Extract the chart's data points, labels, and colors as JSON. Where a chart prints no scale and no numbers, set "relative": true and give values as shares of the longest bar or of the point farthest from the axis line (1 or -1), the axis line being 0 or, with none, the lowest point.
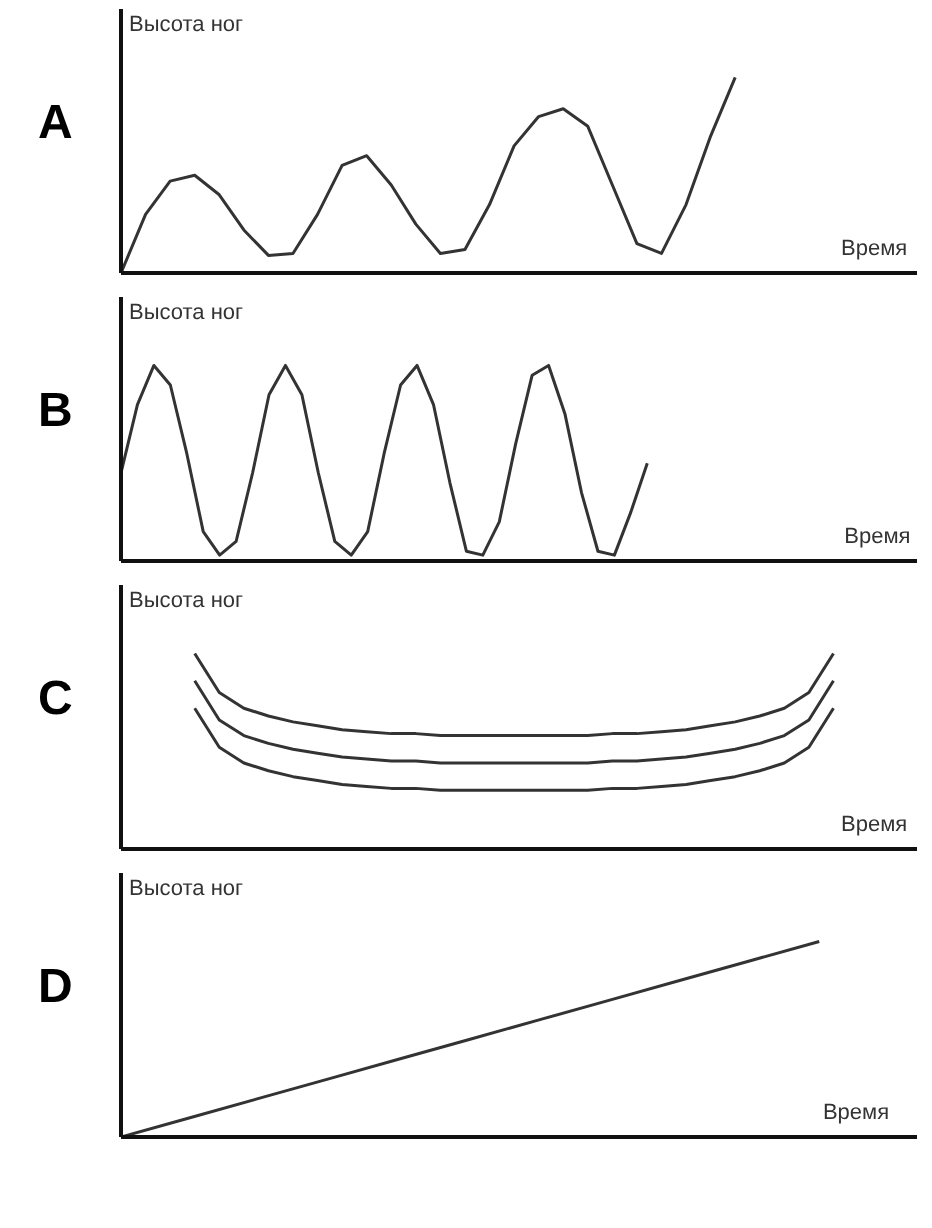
{
  "chart_data": [
    {
      "type": "line",
      "title": "A",
      "ylabel": "Высота ног",
      "xlabel": "Время",
      "relative": true,
      "color": "#333333",
      "categories": [
        null,
        null,
        null,
        null,
        null,
        null,
        null,
        null,
        null,
        null,
        null,
        null,
        null,
        null,
        null,
        null,
        null,
        null,
        null,
        null,
        null,
        null,
        null,
        null,
        null,
        null,
        null,
        null,
        null,
        null,
        null,
        null,
        null
      ],
      "values": [
        0.0,
        0.3,
        0.47,
        0.5,
        0.4,
        0.22,
        0.09,
        0.1,
        0.3,
        0.55,
        0.6,
        0.45,
        0.25,
        0.1,
        0.12,
        0.35,
        0.65,
        0.8,
        0.84,
        0.75,
        0.45,
        0.15,
        0.1,
        0.35,
        0.7,
        1.0,
        null,
        null,
        null,
        null,
        null,
        null,
        null
      ]
    },
    {
      "type": "line",
      "title": "B",
      "ylabel": "Высота ног",
      "xlabel": "Время",
      "relative": true,
      "color": "#333333",
      "categories": [
        null,
        null,
        null,
        null,
        null,
        null,
        null,
        null,
        null,
        null,
        null,
        null,
        null,
        null,
        null,
        null,
        null,
        null,
        null,
        null,
        null,
        null,
        null,
        null,
        null,
        null,
        null,
        null,
        null,
        null,
        null,
        null,
        null,
        null,
        null,
        null,
        null,
        null,
        null,
        null,
        null,
        null,
        null,
        null,
        null,
        null,
        null,
        null,
        null
      ],
      "values": [
        0.45,
        0.8,
        1.0,
        0.9,
        0.55,
        0.15,
        0.03,
        0.1,
        0.45,
        0.85,
        1.0,
        0.85,
        0.45,
        0.1,
        0.03,
        0.15,
        0.55,
        0.9,
        1.0,
        0.8,
        0.4,
        0.05,
        0.03,
        0.2,
        0.6,
        0.95,
        1.0,
        0.75,
        0.35,
        0.05,
        0.03,
        0.25,
        0.5,
        null,
        null,
        null,
        null,
        null,
        null,
        null,
        null,
        null,
        null,
        null,
        null,
        null,
        null,
        null,
        null
      ]
    },
    {
      "type": "line",
      "title": "C",
      "ylabel": "Высота ног",
      "xlabel": "Время",
      "relative": true,
      "categories": [
        null,
        null,
        null,
        null,
        null,
        null,
        null,
        null,
        null,
        null,
        null,
        null,
        null,
        null,
        null,
        null,
        null,
        null,
        null,
        null,
        null,
        null,
        null,
        null,
        null,
        null,
        null,
        null,
        null,
        null,
        null,
        null,
        null
      ],
      "series": [
        {
          "color": "#333333",
          "values": [
            null,
            null,
            null,
            1.0,
            0.8,
            0.72,
            0.68,
            0.65,
            0.63,
            0.61,
            0.6,
            0.59,
            0.59,
            0.58,
            0.58,
            0.58,
            0.58,
            0.58,
            0.58,
            0.58,
            0.59,
            0.59,
            0.6,
            0.61,
            0.63,
            0.65,
            0.68,
            0.72,
            0.8,
            1.0,
            null,
            null,
            null
          ]
        },
        {
          "color": "#333333",
          "values": [
            null,
            null,
            null,
            0.86,
            0.66,
            0.58,
            0.54,
            0.51,
            0.49,
            0.47,
            0.46,
            0.45,
            0.45,
            0.44,
            0.44,
            0.44,
            0.44,
            0.44,
            0.44,
            0.44,
            0.45,
            0.45,
            0.46,
            0.47,
            0.49,
            0.51,
            0.54,
            0.58,
            0.66,
            0.86,
            null,
            null,
            null
          ]
        },
        {
          "color": "#333333",
          "values": [
            null,
            null,
            null,
            0.72,
            0.52,
            0.44,
            0.4,
            0.37,
            0.35,
            0.33,
            0.32,
            0.31,
            0.31,
            0.3,
            0.3,
            0.3,
            0.3,
            0.3,
            0.3,
            0.3,
            0.31,
            0.31,
            0.32,
            0.33,
            0.35,
            0.37,
            0.4,
            0.44,
            0.52,
            0.72,
            null,
            null,
            null
          ]
        }
      ]
    },
    {
      "type": "line",
      "title": "D",
      "ylabel": "Высота ног",
      "xlabel": "Время",
      "relative": true,
      "color": "#333333",
      "categories": [
        null,
        null,
        null,
        null,
        null,
        null,
        null,
        null,
        null,
        null,
        null,
        null
      ],
      "values": [
        0.0,
        0.1,
        0.2,
        0.3,
        0.4,
        0.5,
        0.6,
        0.7,
        0.8,
        0.9,
        1.0,
        null
      ]
    }
  ]
}
